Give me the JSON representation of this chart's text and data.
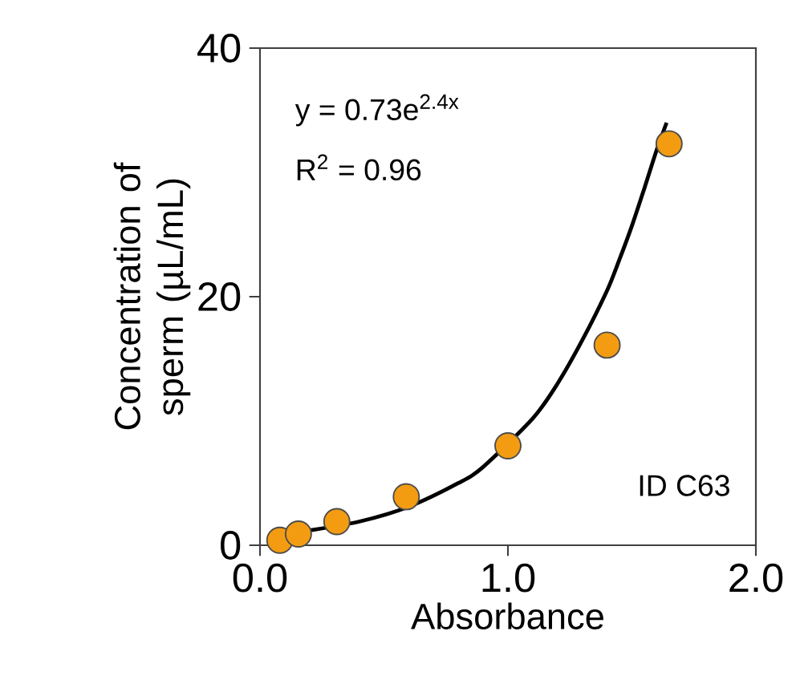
{
  "chart_data": {
    "type": "scatter",
    "xlabel": "Absorbance",
    "ylabel": "Concentration of sperm (µL/mL)",
    "xlim": [
      0,
      2
    ],
    "ylim": [
      0,
      40
    ],
    "xticks": [
      {
        "value": 0,
        "label": "0.0"
      },
      {
        "value": 1,
        "label": "1.0"
      },
      {
        "value": 2,
        "label": "2.0"
      }
    ],
    "yticks": [
      0,
      20,
      40
    ],
    "grid": false,
    "annotations": [
      "y = 0.73e$^{2.4x}$",
      "R$^{2}$ = 0.96",
      "ID C63"
    ],
    "series": [
      {
        "type": "line",
        "color": "#000000",
        "marker": "none",
        "line_style": "solid",
        "x": [
          0.08,
          0.2,
          0.4,
          0.6,
          0.8,
          0.9,
          1.1,
          1.2,
          1.3,
          1.4,
          1.45,
          1.5,
          1.55,
          1.6,
          1.64
        ],
        "values": [
          0.9,
          1.2,
          1.9,
          3.1,
          5.0,
          6.3,
          10.2,
          13.0,
          16.5,
          20.5,
          23.0,
          25.7,
          28.7,
          31.8,
          34.0
        ]
      },
      {
        "color": "#f39c12",
        "marker": "circle",
        "x": [
          0.08,
          0.155,
          0.31,
          0.59,
          1.0,
          1.4,
          1.65
        ],
        "values": [
          0.4,
          0.9,
          1.9,
          3.9,
          8.0,
          16.1,
          32.3
        ]
      }
    ]
  }
}
